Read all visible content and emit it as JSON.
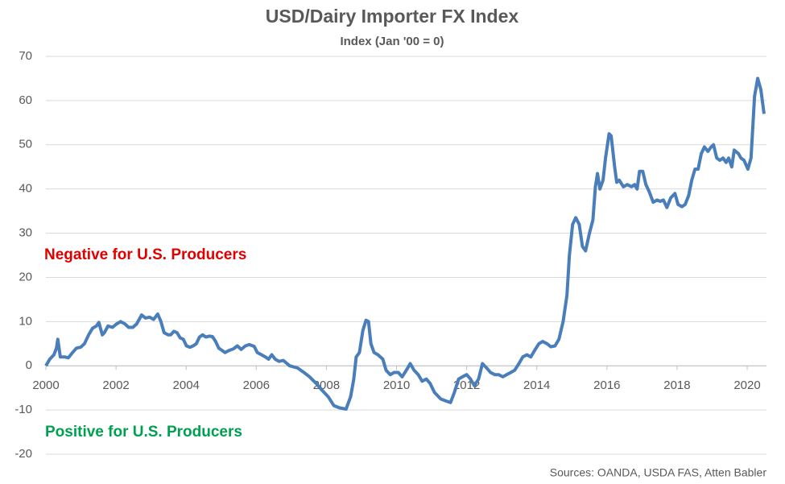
{
  "chart_data": {
    "type": "line",
    "title": "USD/Dairy Importer FX Index",
    "subtitle": "Index (Jan '00 = 0)",
    "source": "Sources: OANDA, USDA FAS, Atten Babler",
    "annotations": [
      {
        "text": "Negative for U.S. Producers",
        "color": "#e00000"
      },
      {
        "text": "Positive for U.S. Producers",
        "color": "#00a050"
      }
    ],
    "xlim": [
      2000,
      2020.55
    ],
    "xticks": [
      2000,
      2002,
      2004,
      2006,
      2008,
      2010,
      2012,
      2014,
      2016,
      2018,
      2020
    ],
    "ylim": [
      -20,
      70
    ],
    "yticks": [
      -20,
      -10,
      0,
      10,
      20,
      30,
      40,
      50,
      60,
      70
    ],
    "grid": true,
    "x": [
      2000.0,
      2000.11,
      2000.23,
      2000.3,
      2000.34,
      2000.41,
      2000.53,
      2000.64,
      2000.76,
      2000.87,
      2000.99,
      2001.1,
      2001.22,
      2001.33,
      2001.44,
      2001.51,
      2001.61,
      2001.67,
      2001.77,
      2001.9,
      2002.02,
      2002.13,
      2002.25,
      2002.36,
      2002.48,
      2002.59,
      2002.73,
      2002.84,
      2002.96,
      2003.07,
      2003.19,
      2003.28,
      2003.37,
      2003.49,
      2003.56,
      2003.65,
      2003.74,
      2003.83,
      2003.92,
      2004.01,
      2004.11,
      2004.2,
      2004.29,
      2004.38,
      2004.47,
      2004.56,
      2004.66,
      2004.75,
      2004.84,
      2004.93,
      2005.02,
      2005.11,
      2005.23,
      2005.34,
      2005.46,
      2005.57,
      2005.69,
      2005.8,
      2005.94,
      2006.03,
      2006.15,
      2006.26,
      2006.35,
      2006.44,
      2006.54,
      2006.65,
      2006.77,
      2006.88,
      2006.95,
      2007.18,
      2007.36,
      2007.52,
      2007.71,
      2007.87,
      2008.05,
      2008.21,
      2008.37,
      2008.56,
      2008.69,
      2008.78,
      2008.85,
      2008.94,
      2009.04,
      2009.13,
      2009.2,
      2009.27,
      2009.36,
      2009.47,
      2009.61,
      2009.7,
      2009.82,
      2009.93,
      2010.05,
      2010.16,
      2010.28,
      2010.39,
      2010.5,
      2010.62,
      2010.73,
      2010.85,
      2010.96,
      2011.08,
      2011.26,
      2011.42,
      2011.54,
      2011.65,
      2011.77,
      2011.88,
      2012.0,
      2012.11,
      2012.22,
      2012.34,
      2012.45,
      2012.57,
      2012.68,
      2012.8,
      2012.91,
      2013.03,
      2013.14,
      2013.26,
      2013.37,
      2013.49,
      2013.6,
      2013.72,
      2013.83,
      2013.94,
      2014.06,
      2014.17,
      2014.29,
      2014.4,
      2014.52,
      2014.63,
      2014.75,
      2014.86,
      2014.93,
      2015.02,
      2015.11,
      2015.21,
      2015.3,
      2015.39,
      2015.5,
      2015.6,
      2015.67,
      2015.73,
      2015.8,
      2015.89,
      2015.96,
      2016.06,
      2016.12,
      2016.22,
      2016.28,
      2016.35,
      2016.47,
      2016.58,
      2016.7,
      2016.79,
      2016.86,
      2016.93,
      2017.02,
      2017.11,
      2017.2,
      2017.32,
      2017.43,
      2017.52,
      2017.61,
      2017.71,
      2017.82,
      2017.94,
      2018.03,
      2018.14,
      2018.23,
      2018.33,
      2018.42,
      2018.51,
      2018.6,
      2018.69,
      2018.78,
      2018.88,
      2018.97,
      2019.04,
      2019.13,
      2019.22,
      2019.31,
      2019.4,
      2019.47,
      2019.56,
      2019.63,
      2019.75,
      2019.82,
      2019.91,
      2020.02,
      2020.11,
      2020.21,
      2020.3,
      2020.39,
      2020.48
    ],
    "series": [
      {
        "name": "USD/Dairy Importer FX Index",
        "color": "#4a7ebb",
        "values": [
          0,
          1.5,
          2.5,
          4,
          6,
          2,
          2,
          1.8,
          3,
          4,
          4.2,
          5,
          7,
          8.5,
          9,
          9.8,
          7,
          7.5,
          9,
          8.7,
          9.5,
          10,
          9.5,
          8.7,
          8.7,
          9.5,
          11.5,
          10.8,
          11,
          10.5,
          11.7,
          10,
          7.5,
          7,
          7,
          7.8,
          7.5,
          6.3,
          6,
          4.5,
          4.2,
          4.5,
          5,
          6.5,
          7,
          6.5,
          6.7,
          6.6,
          5.5,
          4,
          3.5,
          3,
          3.5,
          3.8,
          4.5,
          3.7,
          4.5,
          4.8,
          4.4,
          3,
          2.5,
          2,
          1.5,
          2.5,
          1.5,
          1,
          1.2,
          0.5,
          0,
          -0.5,
          -1.5,
          -2.5,
          -4,
          -5.5,
          -7,
          -9,
          -9.5,
          -9.8,
          -7,
          -3,
          2,
          3,
          8,
          10.3,
          10,
          5,
          3,
          2.5,
          1.5,
          -1,
          -2,
          -1.5,
          -1.5,
          -2.5,
          -1,
          0.5,
          -1,
          -2,
          -3.5,
          -3,
          -4,
          -6,
          -7.5,
          -8,
          -8.3,
          -6,
          -3,
          -2.5,
          -2,
          -3,
          -4.5,
          -3,
          0.5,
          -0.5,
          -1.5,
          -2,
          -2,
          -2.5,
          -2,
          -1.5,
          -1,
          0.5,
          2,
          2.5,
          2,
          3.5,
          5,
          5.5,
          5,
          4.3,
          4.5,
          6,
          10,
          16,
          25,
          32,
          33.5,
          32,
          27,
          26,
          30,
          33,
          40.5,
          43.5,
          40,
          42,
          47,
          52.5,
          52,
          45,
          41.5,
          42,
          40.5,
          41,
          40.5,
          41,
          40,
          44,
          44,
          41,
          39.5,
          37,
          37.5,
          37.2,
          37.5,
          35.8,
          38,
          39,
          36.5,
          36,
          36.5,
          38.5,
          42,
          44.5,
          44.5,
          48,
          49.5,
          48.5,
          49.5,
          50,
          47,
          46.5,
          47,
          46,
          47,
          45,
          48.8,
          48,
          47,
          46.5,
          44.5,
          47,
          61,
          65,
          62.5,
          57
        ]
      }
    ]
  }
}
